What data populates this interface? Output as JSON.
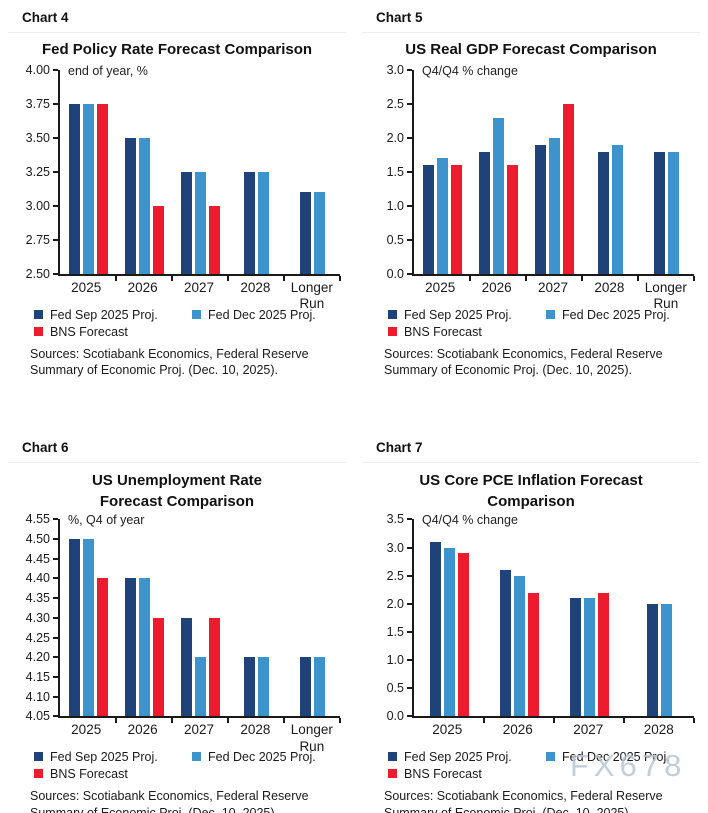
{
  "watermark": "FX678",
  "colors": {
    "fed_sep": "#1F4279",
    "fed_dec": "#3D93CC",
    "bns": "#EC1B2E"
  },
  "legend": {
    "fed_sep": "Fed Sep 2025 Proj.",
    "fed_dec": "Fed Dec 2025 Proj.",
    "bns": "BNS Forecast"
  },
  "sources": "Sources: Scotiabank Economics, Federal Reserve Summary of Economic Proj. (Dec. 10, 2025).",
  "chart_data": [
    {
      "type": "bar",
      "panel_label": "Chart 4",
      "title": "Fed Policy Rate Forecast Comparison",
      "unit_label": "end of year, %",
      "categories": [
        "2025",
        "2026",
        "2027",
        "2028",
        "Longer Run"
      ],
      "ylim": [
        2.5,
        4.0
      ],
      "yticks": [
        {
          "v": 4.0,
          "t": "4.00"
        },
        {
          "v": 3.75,
          "t": "3.75"
        },
        {
          "v": 3.5,
          "t": "3.50"
        },
        {
          "v": 3.25,
          "t": "3.25"
        },
        {
          "v": 3.0,
          "t": "3.00"
        },
        {
          "v": 2.75,
          "t": "2.75"
        },
        {
          "v": 2.5,
          "t": "2.50"
        }
      ],
      "series": [
        {
          "name": "Fed Sep 2025 Proj.",
          "color": "fed_sep",
          "values": [
            3.75,
            3.5,
            3.25,
            3.25,
            3.1
          ]
        },
        {
          "name": "Fed Dec 2025 Proj.",
          "color": "fed_dec",
          "values": [
            3.75,
            3.5,
            3.25,
            3.25,
            3.1
          ]
        },
        {
          "name": "BNS Forecast",
          "color": "bns",
          "values": [
            3.75,
            3.0,
            3.0,
            null,
            null
          ]
        }
      ]
    },
    {
      "type": "bar",
      "panel_label": "Chart 5",
      "title": "US Real GDP Forecast Comparison",
      "unit_label": "Q4/Q4 % change",
      "categories": [
        "2025",
        "2026",
        "2027",
        "2028",
        "Longer Run"
      ],
      "ylim": [
        0.0,
        3.0
      ],
      "yticks": [
        {
          "v": 3.0,
          "t": "3.0"
        },
        {
          "v": 2.5,
          "t": "2.5"
        },
        {
          "v": 2.0,
          "t": "2.0"
        },
        {
          "v": 1.5,
          "t": "1.5"
        },
        {
          "v": 1.0,
          "t": "1.0"
        },
        {
          "v": 0.5,
          "t": "0.5"
        },
        {
          "v": 0.0,
          "t": "0.0"
        }
      ],
      "series": [
        {
          "name": "Fed Sep 2025 Proj.",
          "color": "fed_sep",
          "values": [
            1.6,
            1.8,
            1.9,
            1.8,
            1.8
          ]
        },
        {
          "name": "Fed Dec 2025 Proj.",
          "color": "fed_dec",
          "values": [
            1.7,
            2.3,
            2.0,
            1.9,
            1.8
          ]
        },
        {
          "name": "BNS Forecast",
          "color": "bns",
          "values": [
            1.6,
            1.6,
            2.5,
            null,
            null
          ]
        }
      ]
    },
    {
      "type": "bar",
      "panel_label": "Chart 6",
      "title": "US Unemployment Rate Forecast Comparison",
      "unit_label": "%, Q4 of year",
      "categories": [
        "2025",
        "2026",
        "2027",
        "2028",
        "Longer Run"
      ],
      "ylim": [
        4.05,
        4.55
      ],
      "yticks": [
        {
          "v": 4.55,
          "t": "4.55"
        },
        {
          "v": 4.5,
          "t": "4.50"
        },
        {
          "v": 4.45,
          "t": "4.45"
        },
        {
          "v": 4.4,
          "t": "4.40"
        },
        {
          "v": 4.35,
          "t": "4.35"
        },
        {
          "v": 4.3,
          "t": "4.30"
        },
        {
          "v": 4.25,
          "t": "4.25"
        },
        {
          "v": 4.2,
          "t": "4.20"
        },
        {
          "v": 4.15,
          "t": "4.15"
        },
        {
          "v": 4.1,
          "t": "4.10"
        },
        {
          "v": 4.05,
          "t": "4.05"
        }
      ],
      "series": [
        {
          "name": "Fed Sep 2025 Proj.",
          "color": "fed_sep",
          "values": [
            4.5,
            4.4,
            4.3,
            4.2,
            4.2
          ]
        },
        {
          "name": "Fed Dec 2025 Proj.",
          "color": "fed_dec",
          "values": [
            4.5,
            4.4,
            4.2,
            4.2,
            4.2
          ]
        },
        {
          "name": "BNS Forecast",
          "color": "bns",
          "values": [
            4.4,
            4.3,
            4.3,
            null,
            null
          ]
        }
      ]
    },
    {
      "type": "bar",
      "panel_label": "Chart 7",
      "title": "US Core PCE Inflation Forecast Comparison",
      "unit_label": "Q4/Q4 % change",
      "categories": [
        "2025",
        "2026",
        "2027",
        "2028"
      ],
      "ylim": [
        0.0,
        3.5
      ],
      "yticks": [
        {
          "v": 3.5,
          "t": "3.5"
        },
        {
          "v": 3.0,
          "t": "3.0"
        },
        {
          "v": 2.5,
          "t": "2.5"
        },
        {
          "v": 2.0,
          "t": "2.0"
        },
        {
          "v": 1.5,
          "t": "1.5"
        },
        {
          "v": 1.0,
          "t": "1.0"
        },
        {
          "v": 0.5,
          "t": "0.5"
        },
        {
          "v": 0.0,
          "t": "0.0"
        }
      ],
      "series": [
        {
          "name": "Fed Sep 2025 Proj.",
          "color": "fed_sep",
          "values": [
            3.1,
            2.6,
            2.1,
            2.0
          ]
        },
        {
          "name": "Fed Dec 2025 Proj.",
          "color": "fed_dec",
          "values": [
            3.0,
            2.5,
            2.1,
            2.0
          ]
        },
        {
          "name": "BNS Forecast",
          "color": "bns",
          "values": [
            2.9,
            2.2,
            2.2,
            null
          ]
        }
      ]
    }
  ]
}
